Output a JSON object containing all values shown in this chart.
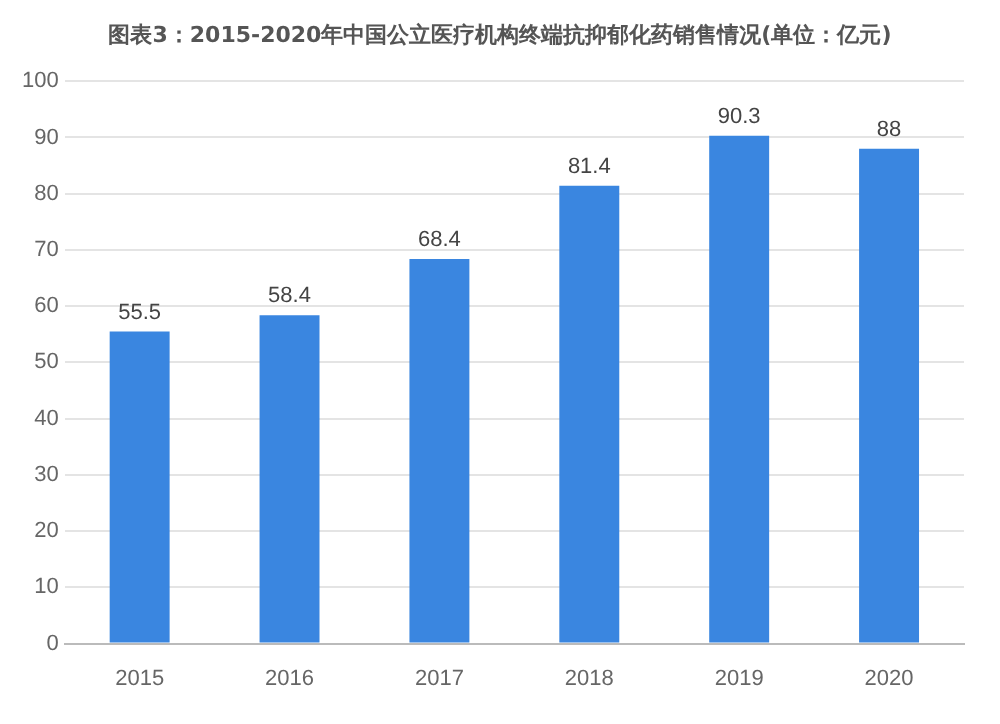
{
  "chart_data": {
    "type": "bar",
    "title": "图表3：2015-2020年中国公立医疗机构终端抗抑郁化药销售情况(单位：亿元)",
    "categories": [
      "2015",
      "2016",
      "2017",
      "2018",
      "2019",
      "2020"
    ],
    "values": [
      55.5,
      58.4,
      68.4,
      81.4,
      90.3,
      88
    ],
    "color": "#3a86e0",
    "ylim": [
      0,
      100
    ],
    "yticks": [
      0,
      10,
      20,
      30,
      40,
      50,
      60,
      70,
      80,
      90,
      100
    ],
    "grid": "y",
    "data_labels": true
  }
}
